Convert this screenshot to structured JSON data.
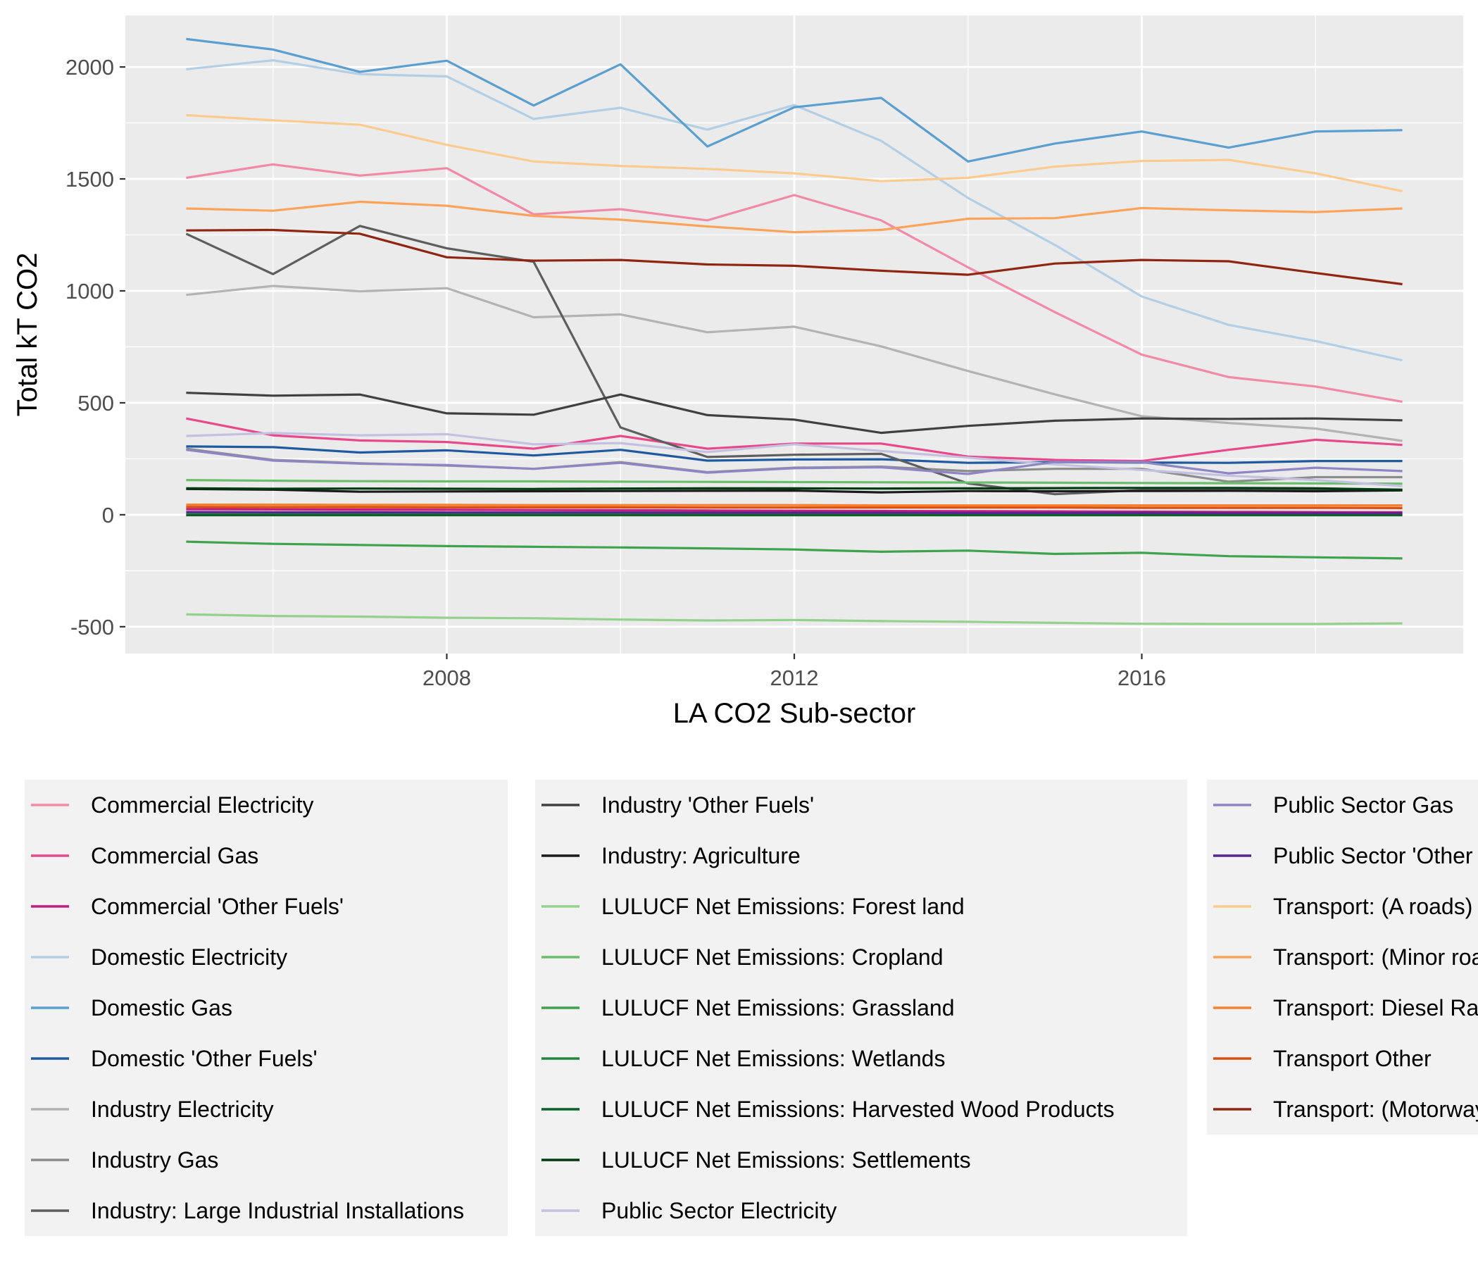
{
  "chart_data": {
    "type": "line",
    "title": "",
    "xlabel": "LA CO2 Sub-sector",
    "ylabel": "Total kT CO2",
    "x": [
      2005,
      2006,
      2007,
      2008,
      2009,
      2010,
      2011,
      2012,
      2013,
      2014,
      2015,
      2016,
      2017,
      2018,
      2019
    ],
    "xlim": [
      2004.3,
      2019.7
    ],
    "ylim": [
      -620,
      2230
    ],
    "xticks": [
      2008,
      2012,
      2016
    ],
    "xtick_labels": [
      "2008",
      "2012",
      "2016"
    ],
    "yticks": [
      -500,
      0,
      500,
      1000,
      1500,
      2000
    ],
    "ytick_labels": [
      "-500",
      "0",
      "500",
      "1000",
      "1500",
      "2000"
    ],
    "grid": true,
    "legend_position": "bottom",
    "series": [
      {
        "name": "Commercial Electricity",
        "color": "#F28AA6",
        "values": [
          1505,
          1565,
          1515,
          1548,
          1342,
          1365,
          1315,
          1428,
          1315,
          1105,
          905,
          715,
          615,
          573,
          505
        ]
      },
      {
        "name": "Commercial Gas",
        "color": "#E7498A",
        "values": [
          430,
          355,
          332,
          325,
          295,
          352,
          295,
          318,
          318,
          260,
          245,
          240,
          290,
          335,
          312
        ]
      },
      {
        "name": "Commercial 'Other Fuels'",
        "color": "#C51B7D",
        "values": [
          25,
          24,
          23,
          22,
          21,
          20,
          19,
          18,
          17,
          16,
          15,
          14,
          13,
          12,
          11
        ]
      },
      {
        "name": "Domestic Electricity",
        "color": "#B3CFE6",
        "values": [
          1990,
          2030,
          1968,
          1958,
          1768,
          1818,
          1720,
          1830,
          1670,
          1415,
          1205,
          975,
          848,
          776,
          690
        ]
      },
      {
        "name": "Domestic Gas",
        "color": "#5A9FD0",
        "values": [
          2125,
          2078,
          1978,
          2028,
          1828,
          2012,
          1645,
          1820,
          1862,
          1578,
          1658,
          1712,
          1640,
          1712,
          1718
        ]
      },
      {
        "name": "Domestic 'Other Fuels'",
        "color": "#1F5A9E",
        "values": [
          305,
          302,
          278,
          288,
          265,
          290,
          242,
          247,
          248,
          232,
          235,
          233,
          232,
          240,
          240
        ]
      },
      {
        "name": "Industry Electricity",
        "color": "#B3B3B3",
        "values": [
          982,
          1022,
          998,
          1012,
          882,
          895,
          815,
          840,
          752,
          642,
          538,
          440,
          410,
          385,
          330
        ]
      },
      {
        "name": "Industry Gas",
        "color": "#8C8C8C",
        "values": [
          295,
          245,
          230,
          220,
          205,
          235,
          190,
          210,
          215,
          195,
          205,
          205,
          148,
          168,
          168
        ]
      },
      {
        "name": "Industry: Large Industrial Installations",
        "color": "#5E5E5E",
        "values": [
          1255,
          1075,
          1290,
          1190,
          1130,
          390,
          258,
          268,
          272,
          140,
          92,
          110,
          110,
          110,
          110
        ]
      },
      {
        "name": "Industry 'Other Fuels'",
        "color": "#404040",
        "values": [
          545,
          532,
          537,
          453,
          447,
          537,
          445,
          425,
          366,
          397,
          420,
          430,
          428,
          430,
          422
        ]
      },
      {
        "name": "Industry: Agriculture",
        "color": "#1A1A1A",
        "values": [
          115,
          112,
          103,
          104,
          105,
          106,
          107,
          108,
          100,
          106,
          105,
          106,
          107,
          105,
          109
        ]
      },
      {
        "name": "LULUCF Net Emissions: Forest land",
        "color": "#94D18D",
        "values": [
          -445,
          -452,
          -455,
          -460,
          -462,
          -468,
          -472,
          -470,
          -475,
          -478,
          -483,
          -487,
          -488,
          -488,
          -485
        ]
      },
      {
        "name": "LULUCF Net Emissions: Cropland",
        "color": "#6BBE6B",
        "values": [
          155,
          152,
          150,
          149,
          149,
          148,
          147,
          146,
          145,
          144,
          143,
          142,
          141,
          140,
          139
        ]
      },
      {
        "name": "LULUCF Net Emissions: Grassland",
        "color": "#3FA34D",
        "values": [
          -120,
          -130,
          -135,
          -140,
          -143,
          -146,
          -150,
          -155,
          -165,
          -160,
          -175,
          -170,
          -185,
          -190,
          -195
        ]
      },
      {
        "name": "LULUCF Net Emissions: Wetlands",
        "color": "#23843C",
        "values": [
          2,
          2,
          2,
          2,
          2,
          2,
          2,
          2,
          2,
          2,
          2,
          2,
          2,
          2,
          2
        ]
      },
      {
        "name": "LULUCF Net Emissions: Harvested Wood Products",
        "color": "#0B6128",
        "values": [
          -2,
          -2,
          -2,
          -2,
          -2,
          -2,
          -2,
          -2,
          -2,
          -2,
          -2,
          -2,
          -2,
          -2,
          -2
        ]
      },
      {
        "name": "LULUCF Net Emissions: Settlements",
        "color": "#003A10",
        "values": [
          118,
          116,
          117,
          116,
          115,
          117,
          118,
          118,
          117,
          118,
          119,
          120,
          120,
          118,
          112
        ]
      },
      {
        "name": "Public Sector Electricity",
        "color": "#C4C1E0",
        "values": [
          352,
          365,
          355,
          360,
          315,
          320,
          280,
          315,
          285,
          255,
          225,
          200,
          175,
          155,
          128
        ]
      },
      {
        "name": "Public Sector Gas",
        "color": "#8C86C4",
        "values": [
          290,
          242,
          228,
          222,
          205,
          232,
          188,
          208,
          212,
          182,
          236,
          235,
          185,
          210,
          195
        ]
      },
      {
        "name": "Public Sector 'Other Fuels'",
        "color": "#54278F",
        "values": [
          12,
          11,
          11,
          10,
          10,
          10,
          9,
          9,
          9,
          8,
          8,
          8,
          7,
          7,
          7
        ]
      },
      {
        "name": "Transport: (A roads)",
        "color": "#FDCB8F",
        "values": [
          1785,
          1762,
          1742,
          1652,
          1578,
          1558,
          1545,
          1525,
          1490,
          1505,
          1555,
          1580,
          1585,
          1525,
          1445
        ]
      },
      {
        "name": "Transport: (Minor roads)",
        "color": "#FDA45A",
        "values": [
          1368,
          1358,
          1398,
          1380,
          1335,
          1318,
          1288,
          1262,
          1272,
          1322,
          1325,
          1370,
          1360,
          1352,
          1368
        ]
      },
      {
        "name": "Transport: Diesel Railways",
        "color": "#F6802D",
        "values": [
          45,
          45,
          44,
          44,
          43,
          43,
          43,
          43,
          42,
          42,
          42,
          42,
          42,
          42,
          42
        ]
      },
      {
        "name": "Transport Other",
        "color": "#DA4F13",
        "values": [
          35,
          34,
          34,
          33,
          33,
          33,
          32,
          32,
          32,
          32,
          32,
          31,
          31,
          31,
          30
        ]
      },
      {
        "name": "Transport: (Motorways)",
        "color": "#8E2611",
        "values": [
          1270,
          1272,
          1255,
          1150,
          1135,
          1138,
          1118,
          1112,
          1090,
          1072,
          1122,
          1138,
          1132,
          1080,
          1030
        ]
      }
    ]
  }
}
